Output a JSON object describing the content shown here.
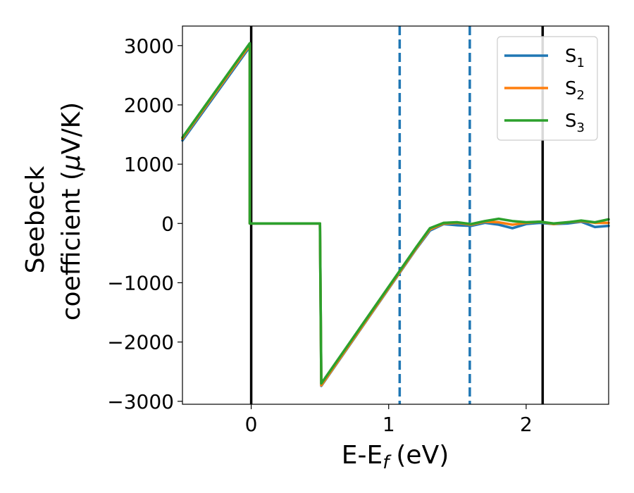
{
  "chart_data": {
    "type": "line",
    "xlabel": "E-E",
    "xlabel_sub": "f",
    "xlabel_unit": "(eV)",
    "ylabel_line1": "Seebeck",
    "ylabel_line2": "coefficient  (",
    "ylabel_mu": "μ",
    "ylabel_unit": "V/K)",
    "xlim": [
      -0.5,
      2.6
    ],
    "ylim": [
      -3050,
      3330
    ],
    "x_ticks": [
      0,
      1,
      2
    ],
    "x_tick_labels": [
      "0",
      "1",
      "2"
    ],
    "y_ticks": [
      -3000,
      -2000,
      -1000,
      0,
      1000,
      2000,
      3000
    ],
    "y_tick_labels": [
      "−3000",
      "−2000",
      "−1000",
      "0",
      "1000",
      "2000",
      "3000"
    ],
    "grid": false,
    "legend_position": "top-right",
    "vertical_lines": [
      {
        "x": 0.0,
        "style": "solid",
        "color": "#000000"
      },
      {
        "x": 1.08,
        "style": "dashed",
        "color": "#1f77b4"
      },
      {
        "x": 1.59,
        "style": "dashed",
        "color": "#1f77b4"
      },
      {
        "x": 2.12,
        "style": "solid",
        "color": "#000000"
      }
    ],
    "series": [
      {
        "name": "S",
        "sub": "1",
        "color": "#1f77b4",
        "x": [
          -0.5,
          -0.01,
          -0.01,
          0.5,
          0.51,
          1.2,
          1.3,
          1.4,
          1.5,
          1.6,
          1.7,
          1.8,
          1.9,
          2.0,
          2.1,
          2.2,
          2.3,
          2.4,
          2.5,
          2.6
        ],
        "y": [
          1400,
          2980,
          0,
          0,
          -2740,
          -430,
          -120,
          -10,
          -30,
          -40,
          10,
          -20,
          -80,
          -10,
          10,
          -10,
          0,
          30,
          -60,
          -40
        ]
      },
      {
        "name": "S",
        "sub": "2",
        "color": "#ff7f0e",
        "x": [
          -0.5,
          -0.01,
          -0.01,
          0.5,
          0.51,
          1.2,
          1.3,
          1.4,
          1.5,
          1.6,
          1.7,
          1.8,
          1.9,
          2.0,
          2.1,
          2.2,
          2.3,
          2.4,
          2.5,
          2.6
        ],
        "y": [
          1430,
          3010,
          0,
          0,
          -2730,
          -420,
          -100,
          0,
          10,
          -20,
          30,
          20,
          -20,
          10,
          30,
          -10,
          20,
          40,
          10,
          10
        ]
      },
      {
        "name": "S",
        "sub": "3",
        "color": "#2ca02c",
        "x": [
          -0.5,
          -0.01,
          -0.01,
          0.5,
          0.51,
          1.2,
          1.3,
          1.4,
          1.5,
          1.6,
          1.7,
          1.8,
          1.9,
          2.0,
          2.1,
          2.2,
          2.3,
          2.4,
          2.5,
          2.6
        ],
        "y": [
          1450,
          3040,
          0,
          0,
          -2700,
          -400,
          -80,
          10,
          20,
          -10,
          40,
          80,
          40,
          20,
          30,
          0,
          20,
          50,
          20,
          70
        ]
      }
    ]
  }
}
